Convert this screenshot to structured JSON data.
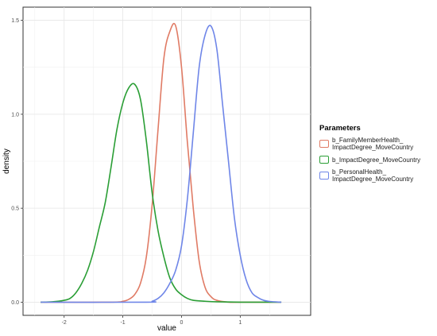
{
  "chart_data": {
    "type": "line",
    "title": "",
    "xlabel": "value",
    "ylabel": "density",
    "xlim": [
      -2.7,
      2.2
    ],
    "ylim": [
      -0.07,
      1.57
    ],
    "x_ticks": [
      -2,
      -1,
      0,
      1
    ],
    "y_ticks": [
      0.0,
      0.5,
      1.0,
      1.5
    ],
    "x_tick_labels": [
      "-2",
      "-1",
      "0",
      "1"
    ],
    "y_tick_labels": [
      "0.0",
      "0.5",
      "1.0",
      "1.5"
    ],
    "grid": true,
    "legend": {
      "title": "Parameters",
      "position": "right"
    },
    "series": [
      {
        "name": "b_FamilyMemberHealth_\nImpactDegree_MoveCountry",
        "color": "#e07b65",
        "x": [
          -2.4,
          -1.2,
          -1.0,
          -0.9,
          -0.8,
          -0.7,
          -0.6,
          -0.5,
          -0.4,
          -0.3,
          -0.2,
          -0.1,
          0.0,
          0.1,
          0.2,
          0.3,
          0.4,
          0.5,
          0.6,
          0.8,
          1.0,
          1.7
        ],
        "y": [
          0.0,
          0.0,
          0.005,
          0.015,
          0.04,
          0.1,
          0.24,
          0.52,
          0.92,
          1.3,
          1.44,
          1.47,
          1.25,
          0.85,
          0.5,
          0.22,
          0.08,
          0.03,
          0.01,
          0.0,
          0.0,
          0.0
        ]
      },
      {
        "name": "b_ImpactDegree_MoveCountry",
        "color": "#2a9e35",
        "x": [
          -2.4,
          -2.2,
          -2.0,
          -1.9,
          -1.8,
          -1.7,
          -1.6,
          -1.5,
          -1.4,
          -1.3,
          -1.2,
          -1.1,
          -1.0,
          -0.9,
          -0.8,
          -0.7,
          -0.6,
          -0.5,
          -0.4,
          -0.3,
          -0.2,
          -0.1,
          0.0,
          0.1,
          0.2,
          0.4,
          0.6,
          1.0,
          1.7
        ],
        "y": [
          0.0,
          0.002,
          0.01,
          0.02,
          0.05,
          0.1,
          0.17,
          0.27,
          0.4,
          0.53,
          0.72,
          0.92,
          1.06,
          1.14,
          1.16,
          1.08,
          0.86,
          0.58,
          0.38,
          0.24,
          0.13,
          0.07,
          0.04,
          0.02,
          0.01,
          0.005,
          0.002,
          0.0,
          0.0
        ]
      },
      {
        "name": "b_PersonalHealth_\nImpactDegree_MoveCountry",
        "color": "#6f86e8",
        "x": [
          -2.4,
          -0.6,
          -0.5,
          -0.4,
          -0.3,
          -0.2,
          -0.1,
          0.0,
          0.1,
          0.2,
          0.3,
          0.4,
          0.5,
          0.6,
          0.7,
          0.8,
          0.9,
          1.0,
          1.1,
          1.2,
          1.3,
          1.4,
          1.5,
          1.7
        ],
        "y": [
          0.0,
          0.0,
          0.005,
          0.02,
          0.05,
          0.1,
          0.17,
          0.3,
          0.55,
          0.9,
          1.25,
          1.42,
          1.47,
          1.35,
          1.05,
          0.75,
          0.45,
          0.25,
          0.12,
          0.05,
          0.025,
          0.01,
          0.004,
          0.0
        ]
      }
    ]
  }
}
